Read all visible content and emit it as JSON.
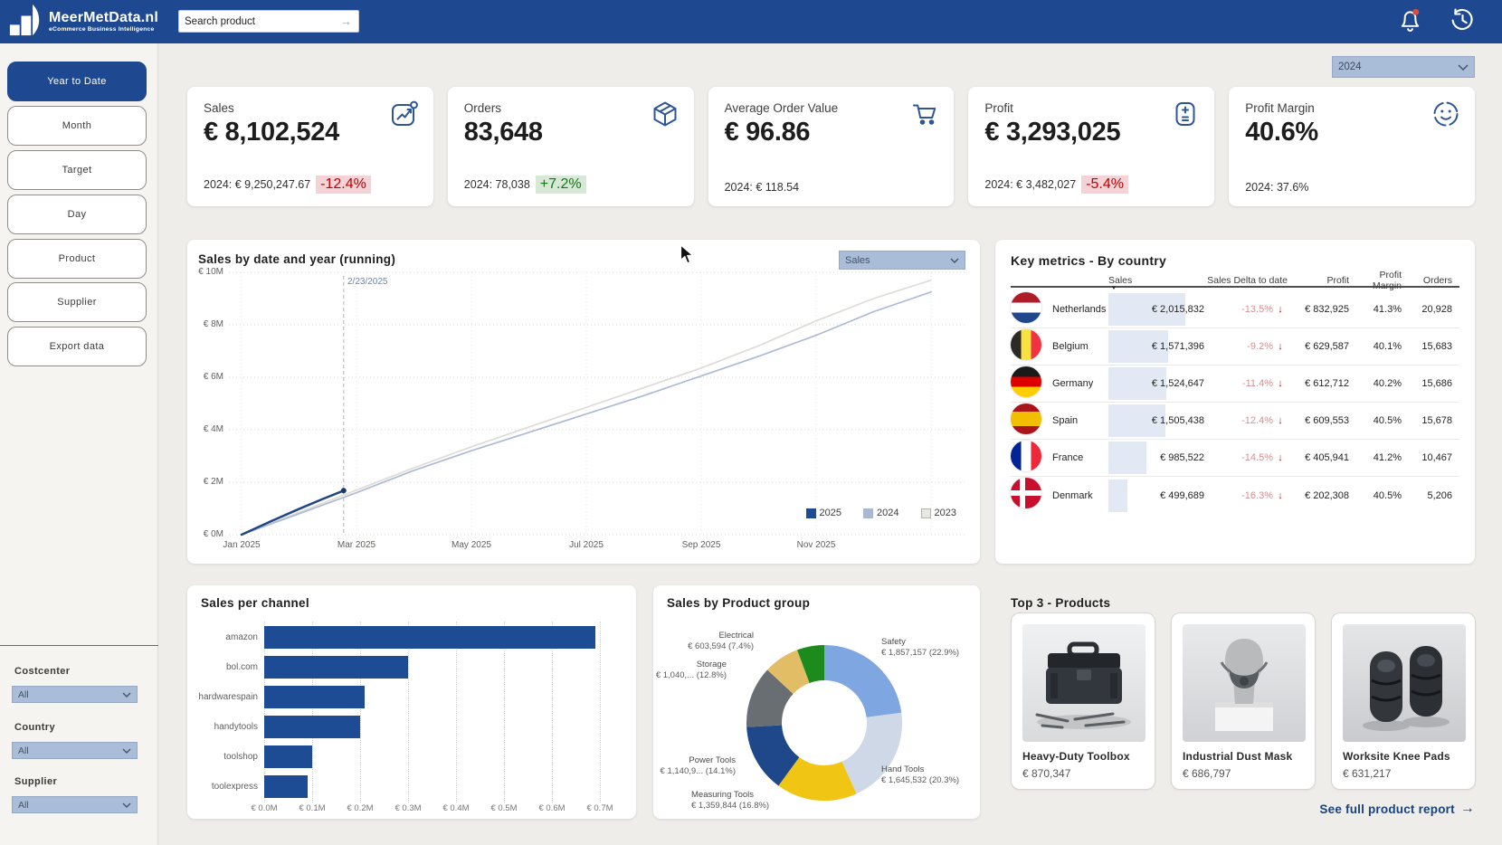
{
  "topbar": {
    "brand": "MeerMetData.nl",
    "tagline": "eCommerce Business Intelligence",
    "search": {
      "placeholder": "Search product",
      "submit_icon": "arrow-right-icon"
    },
    "icons": {
      "notifications": "bell-icon",
      "history": "history-icon"
    }
  },
  "sidebar": {
    "nav": [
      {
        "label": "Year to Date",
        "active": true
      },
      {
        "label": "Month",
        "active": false
      },
      {
        "label": "Target",
        "active": false
      },
      {
        "label": "Day",
        "active": false
      },
      {
        "label": "Product",
        "active": false
      },
      {
        "label": "Supplier",
        "active": false
      },
      {
        "label": "Export data",
        "active": false
      }
    ],
    "filters": [
      {
        "label": "Costcenter",
        "value": "All"
      },
      {
        "label": "Country",
        "value": "All"
      },
      {
        "label": "Supplier",
        "value": "All"
      }
    ]
  },
  "year_selector": {
    "value": "2024"
  },
  "kpis": [
    {
      "title": "Sales",
      "value": "€ 8,102,524",
      "compare": "2024: € 9,250,247.67",
      "delta": "-12.4%",
      "trend": "down",
      "icon": "line-chart-icon"
    },
    {
      "title": "Orders",
      "value": "83,648",
      "compare": "2024: 78,038",
      "delta": "+7.2%",
      "trend": "up",
      "icon": "package-icon"
    },
    {
      "title": "Average Order Value",
      "value": "€ 96.86",
      "compare": "2024: € 118.54",
      "delta": "",
      "trend": "none",
      "icon": "cart-icon"
    },
    {
      "title": "Profit",
      "value": "€ 3,293,025",
      "compare": "2024: € 3,482,027",
      "delta": "-5.4%",
      "trend": "down",
      "icon": "calculator-icon"
    },
    {
      "title": "Profit Margin",
      "value": "40.6%",
      "compare": "2024: 37.6%",
      "delta": "",
      "trend": "none",
      "icon": "smiley-icon"
    }
  ],
  "chart_data": {
    "sales_by_date": {
      "type": "line",
      "title": "Sales by date and year (running)",
      "measure_selector": "Sales",
      "annotation": {
        "label": "2/23/2025",
        "month_position": 1.776
      },
      "x_tick_labels": [
        "Jan 2025",
        "Mar 2025",
        "May 2025",
        "Jul 2025",
        "Sep 2025",
        "Nov 2025"
      ],
      "y_tick_labels": [
        "€ 10M",
        "€ 8M",
        "€ 6M",
        "€ 4M",
        "€ 2M",
        "€ 0M"
      ],
      "ylim_m": [
        0,
        10
      ],
      "series": [
        {
          "name": "2023",
          "color": "#dedcd7",
          "values_m": [
            0,
            0.85,
            1.7,
            2.55,
            3.35,
            4.1,
            4.85,
            5.6,
            6.35,
            7.2,
            8.15,
            9.0,
            9.7
          ]
        },
        {
          "name": "2024",
          "color": "#adbad6",
          "values_m": [
            0,
            0.8,
            1.6,
            2.45,
            3.2,
            3.9,
            4.6,
            5.3,
            6.05,
            6.8,
            7.6,
            8.5,
            9.25
          ]
        },
        {
          "name": "2025",
          "color": "#1e4784",
          "months": [
            0,
            0.5,
            1,
            1.4,
            1.776
          ],
          "values_m": [
            0,
            0.5,
            0.98,
            1.35,
            1.68
          ],
          "end_dot": true
        }
      ],
      "legend": [
        "2025",
        "2024",
        "2023"
      ],
      "legend_colors": [
        "#1e4c94",
        "#aab8d4",
        "#e8e7e4"
      ]
    },
    "sales_per_channel": {
      "type": "bar",
      "title": "Sales per channel",
      "categories": [
        "amazon",
        "bol.com",
        "hardwarespain",
        "handytools",
        "toolshop",
        "toolexpress"
      ],
      "values_eur_m": [
        0.69,
        0.3,
        0.21,
        0.2,
        0.1,
        0.09
      ],
      "x_tick_labels": [
        "€ 0.0M",
        "€ 0.1M",
        "€ 0.2M",
        "€ 0.3M",
        "€ 0.4M",
        "€ 0.5M",
        "€ 0.6M",
        "€ 0.7M"
      ],
      "xlim_m": [
        0,
        0.7
      ],
      "bar_color": "#1e4c94"
    },
    "sales_by_product_group": {
      "type": "donut",
      "title": "Sales by Product group",
      "slices": [
        {
          "label": "Safety",
          "value_label": "€ 1,857,157 (22.9%)",
          "pct": 22.9,
          "color": "#7ea6e0"
        },
        {
          "label": "Hand Tools",
          "value_label": "€ 1,645,532 (20.3%)",
          "pct": 20.3,
          "color": "#cfd8e6"
        },
        {
          "label": "Measuring Tools",
          "value_label": "€ 1,359,844 (16.8%)",
          "pct": 16.8,
          "color": "#f0c514"
        },
        {
          "label": "Power Tools",
          "value_label": "€ 1,140,9... (14.1%)",
          "pct": 14.1,
          "color": "#1e4889"
        },
        {
          "label": "Storage",
          "value_label": "€ 1,040,... (12.8%)",
          "pct": 12.8,
          "color": "#696e72"
        },
        {
          "label": "Electrical",
          "value_label": "€ 603,594 (7.4%)",
          "pct": 7.4,
          "color": "#e3bd66"
        },
        {
          "label": "",
          "value_label": "",
          "pct": 5.7,
          "color": "#1c8a1c"
        }
      ]
    }
  },
  "country_table": {
    "title": "Key metrics - By country",
    "columns": [
      "Sales",
      "Sales Delta to date",
      "Profit",
      "Profit Margin",
      "Orders"
    ],
    "sort_column": "Sales",
    "rows": [
      {
        "country": "Netherlands",
        "flag": "nl",
        "sales": "€ 2,015,832",
        "sales_value": 2015832,
        "delta": "-13.5%",
        "profit": "€ 832,925",
        "margin": "41.3%",
        "orders": "20,928"
      },
      {
        "country": "Belgium",
        "flag": "be",
        "sales": "€ 1,571,396",
        "sales_value": 1571396,
        "delta": "-9.2%",
        "profit": "€ 629,587",
        "margin": "40.1%",
        "orders": "15,683"
      },
      {
        "country": "Germany",
        "flag": "de",
        "sales": "€ 1,524,647",
        "sales_value": 1524647,
        "delta": "-11.4%",
        "profit": "€ 612,712",
        "margin": "40.2%",
        "orders": "15,686"
      },
      {
        "country": "Spain",
        "flag": "es",
        "sales": "€ 1,505,438",
        "sales_value": 1505438,
        "delta": "-12.4%",
        "profit": "€ 609,553",
        "margin": "40.5%",
        "orders": "15,678"
      },
      {
        "country": "France",
        "flag": "fr",
        "sales": "€ 985,522",
        "sales_value": 985522,
        "delta": "-14.5%",
        "profit": "€ 405,941",
        "margin": "41.2%",
        "orders": "10,467"
      },
      {
        "country": "Denmark",
        "flag": "dk",
        "sales": "€ 499,689",
        "sales_value": 499689,
        "delta": "-16.3%",
        "profit": "€ 202,308",
        "margin": "40.5%",
        "orders": "5,206"
      }
    ],
    "down_arrow": "↓",
    "sort_indicator": "▼"
  },
  "top_products": {
    "title": "Top 3 - Products",
    "items": [
      {
        "name": "Heavy-Duty Toolbox",
        "value": "€ 870,347",
        "image": "toolbox-photo"
      },
      {
        "name": "Industrial Dust Mask",
        "value": "€ 686,797",
        "image": "dust-mask-photo"
      },
      {
        "name": "Worksite Knee Pads",
        "value": "€ 631,217",
        "image": "knee-pads-photo"
      }
    ],
    "report_link": "See full product report",
    "report_link_arrow": "→"
  },
  "colors": {
    "primary": "#1e4990",
    "bar_accent": "#1e4c94",
    "negative": "#c00000",
    "positive": "#107c10",
    "dropdown_bg": "#a9bdd8",
    "page_bg": "#efedea",
    "table_bar_bg": "#e3e9f4"
  }
}
